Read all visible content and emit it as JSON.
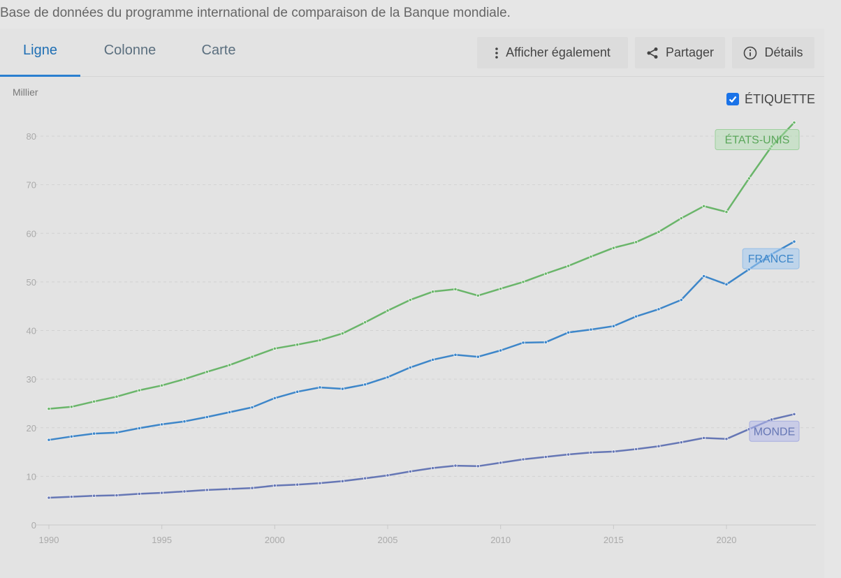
{
  "source": "Base de données du programme international de comparaison de la Banque mondiale.",
  "tabs": [
    {
      "label": "Ligne",
      "active": true
    },
    {
      "label": "Colonne",
      "active": false
    },
    {
      "label": "Carte",
      "active": false
    }
  ],
  "toolbar": {
    "show_also": "Afficher également",
    "share": "Partager",
    "details": "Détails"
  },
  "label_toggle": {
    "label": "ÉTIQUETTE",
    "checked": true
  },
  "chart_data": {
    "type": "line",
    "unit_label": "Millier",
    "x": [
      1990,
      1991,
      1992,
      1993,
      1994,
      1995,
      1996,
      1997,
      1998,
      1999,
      2000,
      2001,
      2002,
      2003,
      2004,
      2005,
      2006,
      2007,
      2008,
      2009,
      2010,
      2011,
      2012,
      2013,
      2014,
      2015,
      2016,
      2017,
      2018,
      2019,
      2020,
      2021,
      2022,
      2023
    ],
    "xticks": [
      1990,
      1995,
      2000,
      2005,
      2010,
      2015,
      2020
    ],
    "yticks": [
      0,
      10,
      20,
      30,
      40,
      50,
      60,
      70,
      80
    ],
    "ylim": [
      0,
      80
    ],
    "grid": true,
    "series": [
      {
        "name": "ÉTATS-UNIS",
        "color": "#6ab56a",
        "values": [
          23.9,
          24.3,
          25.4,
          26.4,
          27.7,
          28.7,
          30.0,
          31.5,
          32.9,
          34.6,
          36.3,
          37.1,
          38.0,
          39.4,
          41.7,
          44.1,
          46.3,
          48.0,
          48.5,
          47.2,
          48.6,
          50.0,
          51.7,
          53.3,
          55.2,
          57.0,
          58.2,
          60.3,
          63.1,
          65.6,
          64.4,
          71.3,
          77.9,
          82.8
        ]
      },
      {
        "name": "FRANCE",
        "color": "#3d86c9",
        "values": [
          17.5,
          18.2,
          18.8,
          19.0,
          19.9,
          20.7,
          21.3,
          22.2,
          23.2,
          24.2,
          26.1,
          27.4,
          28.3,
          28.0,
          28.9,
          30.4,
          32.4,
          34.0,
          35.0,
          34.6,
          35.9,
          37.5,
          37.6,
          39.6,
          40.2,
          40.9,
          42.9,
          44.4,
          46.3,
          51.2,
          49.5,
          52.6,
          55.7,
          58.3
        ]
      },
      {
        "name": "MONDE",
        "color": "#6677b5",
        "values": [
          5.6,
          5.8,
          6.0,
          6.1,
          6.4,
          6.6,
          6.9,
          7.2,
          7.4,
          7.6,
          8.1,
          8.3,
          8.6,
          9.0,
          9.6,
          10.2,
          11.0,
          11.7,
          12.2,
          12.1,
          12.8,
          13.5,
          14.0,
          14.5,
          14.9,
          15.1,
          15.6,
          16.2,
          17.0,
          17.9,
          17.7,
          19.7,
          21.7,
          22.8
        ]
      }
    ]
  }
}
